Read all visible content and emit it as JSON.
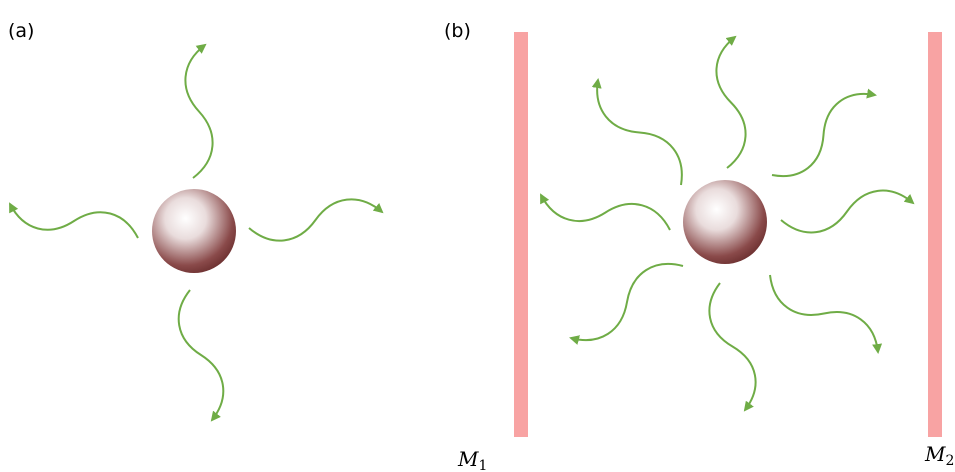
{
  "panels": [
    {
      "label": "(a)"
    },
    {
      "label": "(b)"
    }
  ],
  "mirrors": [
    {
      "symbol": "M",
      "subscript": "1"
    },
    {
      "symbol": "M",
      "subscript": "2"
    }
  ]
}
